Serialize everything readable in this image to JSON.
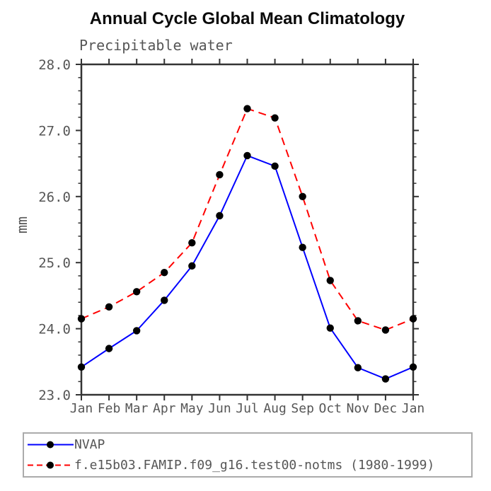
{
  "chart_data": {
    "type": "line",
    "title": "Annual Cycle Global Mean Climatology",
    "subtitle": "Precipitable water",
    "ylabel": "mm",
    "xlabel": "",
    "x_tick_labels": [
      "Jan",
      "Feb",
      "Mar",
      "Apr",
      "May",
      "Jun",
      "Jul",
      "Aug",
      "Sep",
      "Oct",
      "Nov",
      "Dec",
      "Jan"
    ],
    "ylim": [
      23.0,
      28.0
    ],
    "y_major_step": 1.0,
    "y_minor_step": 0.2,
    "y_tick_labels": [
      "23.0",
      "24.0",
      "25.0",
      "26.0",
      "27.0",
      "28.0"
    ],
    "grid": false,
    "legend_position": "bottom-left-outside",
    "series": [
      {
        "name": "NVAP",
        "color": "#0000ff",
        "line_style": "solid",
        "marker": "filled-circle",
        "marker_color": "#000000",
        "values": [
          23.42,
          23.7,
          23.97,
          24.43,
          24.95,
          25.71,
          26.62,
          26.46,
          25.23,
          24.01,
          23.41,
          23.24,
          23.42
        ]
      },
      {
        "name": "f.e15b03.FAMIP.f09_g16.test00-notms (1980-1999)",
        "color": "#ff0000",
        "line_style": "dashed",
        "marker": "filled-circle",
        "marker_color": "#000000",
        "values": [
          24.15,
          24.33,
          24.56,
          24.85,
          25.3,
          26.33,
          27.33,
          27.19,
          26.0,
          24.73,
          24.12,
          23.98,
          24.15
        ]
      }
    ],
    "style": {
      "axis_color": "#333333",
      "label_color": "#565656",
      "title_color": "#0a0a0a",
      "legend_border_color": "#ababab",
      "background": "#ffffff"
    }
  }
}
